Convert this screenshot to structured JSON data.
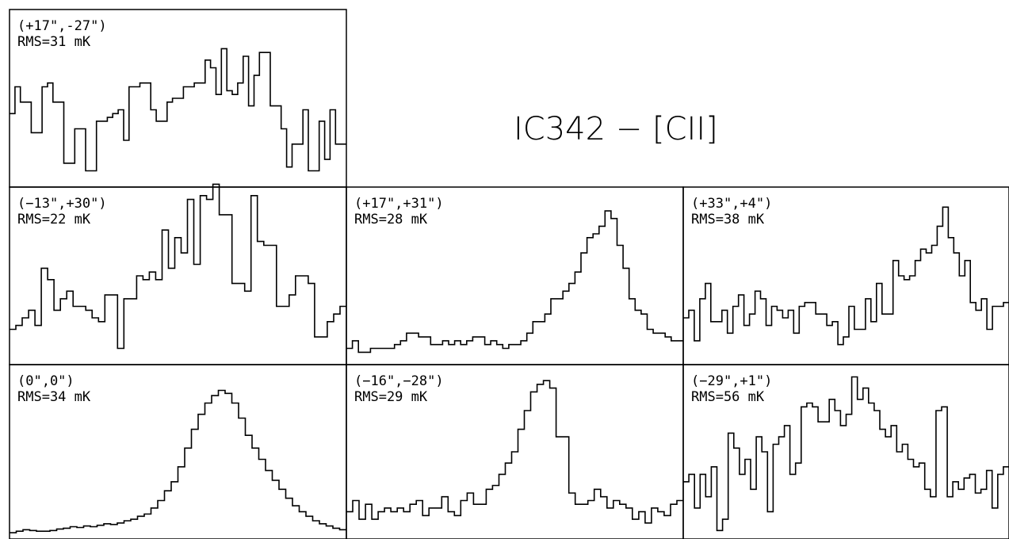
{
  "title": "IC342 − [CII]",
  "chart_data": [
    {
      "type": "line",
      "position_label": "(+17\",-27\")",
      "rms_label": "RMS=31 mK",
      "values": [
        90,
        125,
        105,
        105,
        65,
        65,
        125,
        130,
        105,
        105,
        25,
        25,
        70,
        70,
        15,
        15,
        80,
        80,
        85,
        90,
        95,
        55,
        125,
        125,
        130,
        130,
        95,
        80,
        80,
        105,
        110,
        110,
        125,
        125,
        130,
        130,
        160,
        150,
        115,
        175,
        120,
        115,
        130,
        165,
        100,
        140,
        170,
        170,
        100,
        100,
        70,
        20,
        50,
        50,
        95,
        15,
        15,
        80,
        30,
        95,
        50,
        50
      ]
    },
    {
      "type": "line",
      "position_label": "(−13\",+30\")",
      "rms_label": "RMS=22 mK",
      "values": [
        40,
        45,
        55,
        65,
        45,
        120,
        105,
        65,
        80,
        90,
        70,
        70,
        65,
        55,
        50,
        85,
        85,
        15,
        80,
        80,
        110,
        105,
        115,
        105,
        170,
        120,
        160,
        140,
        210,
        125,
        215,
        210,
        230,
        190,
        190,
        100,
        100,
        90,
        215,
        155,
        150,
        150,
        70,
        70,
        85,
        110,
        110,
        100,
        30,
        30,
        50,
        60,
        70
      ]
    },
    {
      "type": "line",
      "position_label": "(+17\",+31\")",
      "rms_label": "RMS=28 mK",
      "values": [
        15,
        25,
        10,
        10,
        15,
        15,
        15,
        15,
        20,
        25,
        35,
        35,
        30,
        30,
        20,
        20,
        25,
        20,
        25,
        20,
        25,
        30,
        30,
        20,
        25,
        20,
        15,
        20,
        20,
        25,
        35,
        50,
        50,
        60,
        80,
        80,
        90,
        100,
        115,
        140,
        160,
        165,
        175,
        195,
        185,
        150,
        120,
        80,
        65,
        60,
        40,
        35,
        35,
        30,
        25,
        25
      ]
    },
    {
      "type": "line",
      "position_label": "(+33\",+4\")",
      "rms_label": "RMS=38 mK",
      "values": [
        55,
        65,
        25,
        80,
        100,
        50,
        50,
        65,
        35,
        70,
        85,
        45,
        60,
        90,
        80,
        45,
        70,
        65,
        55,
        65,
        35,
        70,
        75,
        75,
        60,
        60,
        45,
        50,
        20,
        30,
        70,
        40,
        40,
        80,
        50,
        100,
        60,
        60,
        130,
        110,
        105,
        110,
        130,
        145,
        140,
        150,
        175,
        200,
        160,
        140,
        110,
        130,
        75,
        65,
        80,
        40,
        70,
        70,
        75
      ]
    },
    {
      "type": "line",
      "position_label": "(0\",0\")",
      "rms_label": "RMS=34 mK",
      "values": [
        2,
        4,
        6,
        5,
        4,
        4,
        5,
        7,
        8,
        10,
        9,
        11,
        10,
        12,
        14,
        13,
        15,
        18,
        20,
        24,
        27,
        35,
        45,
        58,
        70,
        90,
        115,
        140,
        160,
        175,
        185,
        192,
        188,
        175,
        155,
        132,
        115,
        100,
        85,
        72,
        60,
        48,
        38,
        30,
        24,
        18,
        14,
        11,
        8,
        6
      ]
    },
    {
      "type": "line",
      "position_label": "(−16\",−28\")",
      "rms_label": "RMS=29 mK",
      "values": [
        30,
        45,
        20,
        40,
        20,
        30,
        35,
        30,
        35,
        30,
        40,
        45,
        25,
        35,
        35,
        50,
        30,
        25,
        45,
        55,
        40,
        40,
        60,
        65,
        80,
        95,
        110,
        140,
        165,
        190,
        200,
        205,
        195,
        130,
        130,
        55,
        40,
        40,
        45,
        60,
        50,
        35,
        45,
        40,
        35,
        20,
        30,
        15,
        35,
        30,
        25,
        40,
        45
      ]
    },
    {
      "type": "line",
      "position_label": "(−29\",+1\")",
      "rms_label": "RMS=56 mK",
      "values": [
        70,
        80,
        35,
        80,
        50,
        90,
        5,
        20,
        135,
        115,
        80,
        100,
        60,
        130,
        110,
        30,
        120,
        130,
        145,
        80,
        95,
        170,
        175,
        170,
        150,
        150,
        180,
        165,
        145,
        160,
        210,
        180,
        195,
        175,
        165,
        140,
        130,
        145,
        110,
        120,
        100,
        90,
        95,
        60,
        50,
        165,
        170,
        50,
        70,
        60,
        75,
        80,
        55,
        60,
        85,
        35,
        80,
        90
      ]
    }
  ]
}
